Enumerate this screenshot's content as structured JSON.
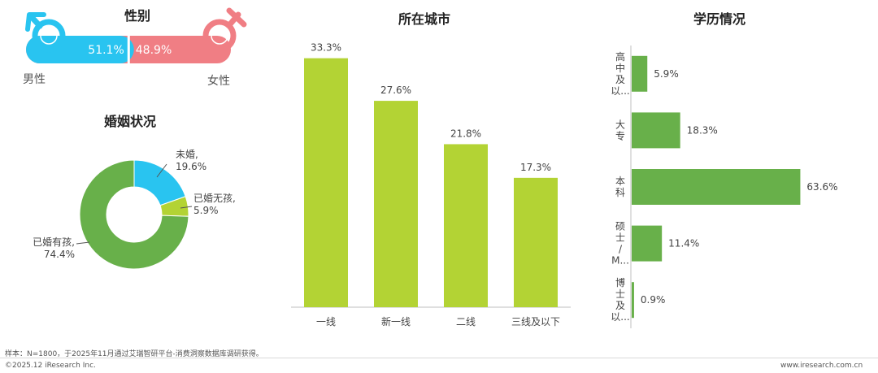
{
  "chart_data": [
    {
      "type": "bar",
      "title": "性别",
      "orientation": "horizontal-stacked",
      "categories": [
        "男性",
        "女性"
      ],
      "values": [
        51.1,
        48.9
      ],
      "value_labels": [
        "51.1%",
        "48.9%"
      ],
      "colors": [
        "#29c4f0",
        "#f07e84"
      ],
      "icons": [
        "male-symbol-icon",
        "female-symbol-icon"
      ]
    },
    {
      "type": "pie",
      "title": "婚姻状况",
      "donut": true,
      "slices": [
        {
          "label": "未婚,",
          "value": 19.6,
          "value_label": "19.6%",
          "color": "#29c4f0"
        },
        {
          "label": "已婚无孩,",
          "value": 5.9,
          "value_label": "5.9%",
          "color": "#b3d334"
        },
        {
          "label": "已婚有孩,",
          "value": 74.4,
          "value_label": "74.4%",
          "color": "#68b04a"
        }
      ]
    },
    {
      "type": "bar",
      "title": "所在城市",
      "categories": [
        "一线",
        "新一线",
        "二线",
        "三线及以下"
      ],
      "values": [
        33.3,
        27.6,
        21.8,
        17.3
      ],
      "value_labels": [
        "33.3%",
        "27.6%",
        "21.8%",
        "17.3%"
      ],
      "color": "#b3d334",
      "ylim": [
        0,
        35
      ]
    },
    {
      "type": "bar",
      "title": "学历情况",
      "orientation": "horizontal",
      "categories": [
        [
          "高",
          "中",
          "及",
          "以..."
        ],
        [
          "大",
          "专"
        ],
        [
          "本",
          "科"
        ],
        [
          "硕",
          "士",
          "/",
          "M..."
        ],
        [
          "博",
          "士",
          "及",
          "以..."
        ]
      ],
      "values": [
        5.9,
        18.3,
        63.6,
        11.4,
        0.9
      ],
      "value_labels": [
        "5.9%",
        "18.3%",
        "63.6%",
        "11.4%",
        "0.9%"
      ],
      "color": "#68b04a",
      "xlim": [
        0,
        65
      ]
    }
  ],
  "footer": {
    "note": "样本：N=1800，于2025年11月通过艾瑞智研平台-消费洞察数据库调研获得。",
    "copyright": "©2025.12 iResearch Inc.",
    "website": "www.iresearch.com.cn"
  }
}
